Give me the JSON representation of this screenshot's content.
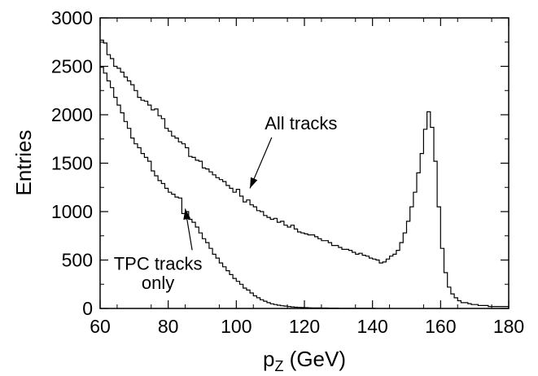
{
  "chart_data": {
    "type": "line",
    "title": "",
    "xlabel": "p",
    "xlabel_sub": "Z",
    "xlabel_unit": " (GeV)",
    "ylabel": "Entries",
    "xlim": [
      60,
      180
    ],
    "ylim": [
      0,
      3000
    ],
    "xticks": [
      60,
      80,
      100,
      120,
      140,
      160,
      180
    ],
    "yticks": [
      0,
      500,
      1000,
      1500,
      2000,
      2500,
      3000
    ],
    "grid": false,
    "legend": "none",
    "step_histogram": true,
    "series": [
      {
        "x": [
          60,
          61,
          62,
          63,
          64,
          65,
          66,
          67,
          68,
          69,
          70,
          71,
          72,
          73,
          74,
          75,
          76,
          77,
          78,
          79,
          80,
          81,
          82,
          83,
          84,
          85,
          86,
          87,
          88,
          89,
          90,
          91,
          92,
          93,
          94,
          95,
          96,
          97,
          98,
          99,
          100,
          101,
          102,
          103,
          104,
          105,
          106,
          107,
          108,
          109,
          110,
          111,
          112,
          113,
          114,
          115,
          116,
          117,
          118,
          119,
          120,
          121,
          122,
          123,
          124,
          125,
          126,
          127,
          128,
          129,
          130,
          131,
          132,
          133,
          134,
          135,
          136,
          137,
          138,
          139,
          140,
          141,
          142,
          143,
          144,
          145,
          146,
          147,
          148,
          149,
          150,
          151,
          152,
          153,
          154,
          155,
          156,
          157,
          158,
          159,
          160,
          161,
          162,
          163,
          164,
          165,
          166,
          167,
          168,
          169,
          170,
          171,
          172,
          173,
          174,
          175,
          176,
          177,
          178,
          179
        ],
        "y": [
          2770,
          2740,
          2620,
          2580,
          2500,
          2480,
          2440,
          2390,
          2350,
          2310,
          2250,
          2180,
          2150,
          2140,
          2100,
          2050,
          2060,
          1990,
          1960,
          1860,
          1830,
          1780,
          1760,
          1720,
          1700,
          1660,
          1570,
          1560,
          1530,
          1520,
          1450,
          1440,
          1410,
          1380,
          1350,
          1330,
          1310,
          1270,
          1240,
          1200,
          1230,
          1160,
          1100,
          1120,
          1070,
          1050,
          1010,
          1000,
          960,
          940,
          920,
          930,
          890,
          900,
          860,
          840,
          860,
          820,
          790,
          780,
          770,
          760,
          760,
          740,
          720,
          700,
          700,
          680,
          650,
          650,
          630,
          610,
          610,
          600,
          580,
          560,
          570,
          550,
          540,
          520,
          510,
          500,
          470,
          480,
          510,
          540,
          560,
          600,
          680,
          780,
          900,
          1050,
          1200,
          1400,
          1600,
          1850,
          2030,
          1870,
          1520,
          1050,
          620,
          370,
          220,
          150,
          110,
          80,
          60,
          60,
          50,
          40,
          40,
          30,
          30,
          30,
          20,
          20,
          20,
          20,
          20,
          20
        ]
      },
      {
        "x": [
          60,
          61,
          62,
          63,
          64,
          65,
          66,
          67,
          68,
          69,
          70,
          71,
          72,
          73,
          74,
          75,
          76,
          77,
          78,
          79,
          80,
          81,
          82,
          83,
          84,
          85,
          86,
          87,
          88,
          89,
          90,
          91,
          92,
          93,
          94,
          95,
          96,
          97,
          98,
          99,
          100,
          101,
          102,
          103,
          104,
          105,
          106,
          107,
          108,
          109,
          110,
          111,
          112,
          113,
          114,
          115,
          116,
          117,
          118,
          119,
          120,
          121,
          122,
          123,
          124,
          125,
          126,
          127,
          128,
          129,
          130,
          131,
          132,
          133,
          134,
          135,
          136,
          137,
          138,
          139,
          140
        ],
        "y": [
          2490,
          2430,
          2350,
          2280,
          2180,
          2100,
          2020,
          1930,
          1860,
          1760,
          1700,
          1660,
          1600,
          1560,
          1520,
          1420,
          1370,
          1320,
          1290,
          1240,
          1200,
          1180,
          1150,
          1140,
          980,
          1000,
          920,
          890,
          840,
          780,
          720,
          680,
          620,
          560,
          520,
          470,
          430,
          390,
          350,
          310,
          280,
          250,
          210,
          190,
          160,
          130,
          110,
          90,
          75,
          60,
          48,
          40,
          34,
          28,
          24,
          20,
          16,
          13,
          11,
          9,
          8,
          7,
          6,
          5,
          5,
          4,
          4,
          3,
          3,
          3,
          2,
          2,
          2,
          2,
          1,
          1,
          1,
          1,
          1,
          1,
          1
        ]
      }
    ],
    "annotations": [
      {
        "text": "All tracks",
        "x": 119,
        "y": 1850,
        "arrow_to": [
          104,
          1240
        ]
      },
      {
        "text": "TPC tracks",
        "x": 77,
        "y": 400,
        "arrow_to": [
          85,
          1030
        ]
      },
      {
        "text": "only",
        "x": 77,
        "y": 200
      }
    ]
  }
}
